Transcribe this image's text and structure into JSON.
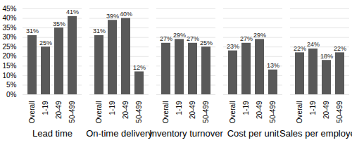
{
  "chart_data": {
    "type": "bar",
    "categories": [
      "Lead time",
      "On-time delivery",
      "Inventory turnover",
      "Cost per unit",
      "Sales per employee"
    ],
    "series": [
      {
        "name": "Overall",
        "color": "#595959",
        "values": [
          31,
          31,
          27,
          23,
          22
        ],
        "value_labels": [
          "31%",
          "31%",
          "27%",
          "23%",
          "22%"
        ]
      },
      {
        "name": "1-19",
        "color": "#595959",
        "values": [
          25,
          39,
          29,
          27,
          24
        ],
        "value_labels": [
          "25%",
          "39%",
          "29%",
          "27%",
          "24%"
        ]
      },
      {
        "name": "20-49",
        "color": "#595959",
        "values": [
          35,
          40,
          27,
          29,
          18
        ],
        "value_labels": [
          "35%",
          "40%",
          "27%",
          "29%",
          "18%"
        ]
      },
      {
        "name": "50-499",
        "color": "#595959",
        "values": [
          41,
          12,
          25,
          13,
          22
        ],
        "value_labels": [
          "41%",
          "12%",
          "25%",
          "13%",
          "22%"
        ]
      }
    ],
    "ylim": [
      0,
      45
    ],
    "yticks": [
      {
        "value": 0,
        "label": "0%"
      },
      {
        "value": 5,
        "label": "5%"
      },
      {
        "value": 10,
        "label": "10%"
      },
      {
        "value": 15,
        "label": "15%"
      },
      {
        "value": 20,
        "label": "20%"
      },
      {
        "value": 25,
        "label": "25%"
      },
      {
        "value": 30,
        "label": "30%"
      },
      {
        "value": 35,
        "label": "35%"
      },
      {
        "value": 40,
        "label": "40%"
      },
      {
        "value": 45,
        "label": "45%"
      }
    ],
    "grid": true,
    "data_labels": true
  }
}
